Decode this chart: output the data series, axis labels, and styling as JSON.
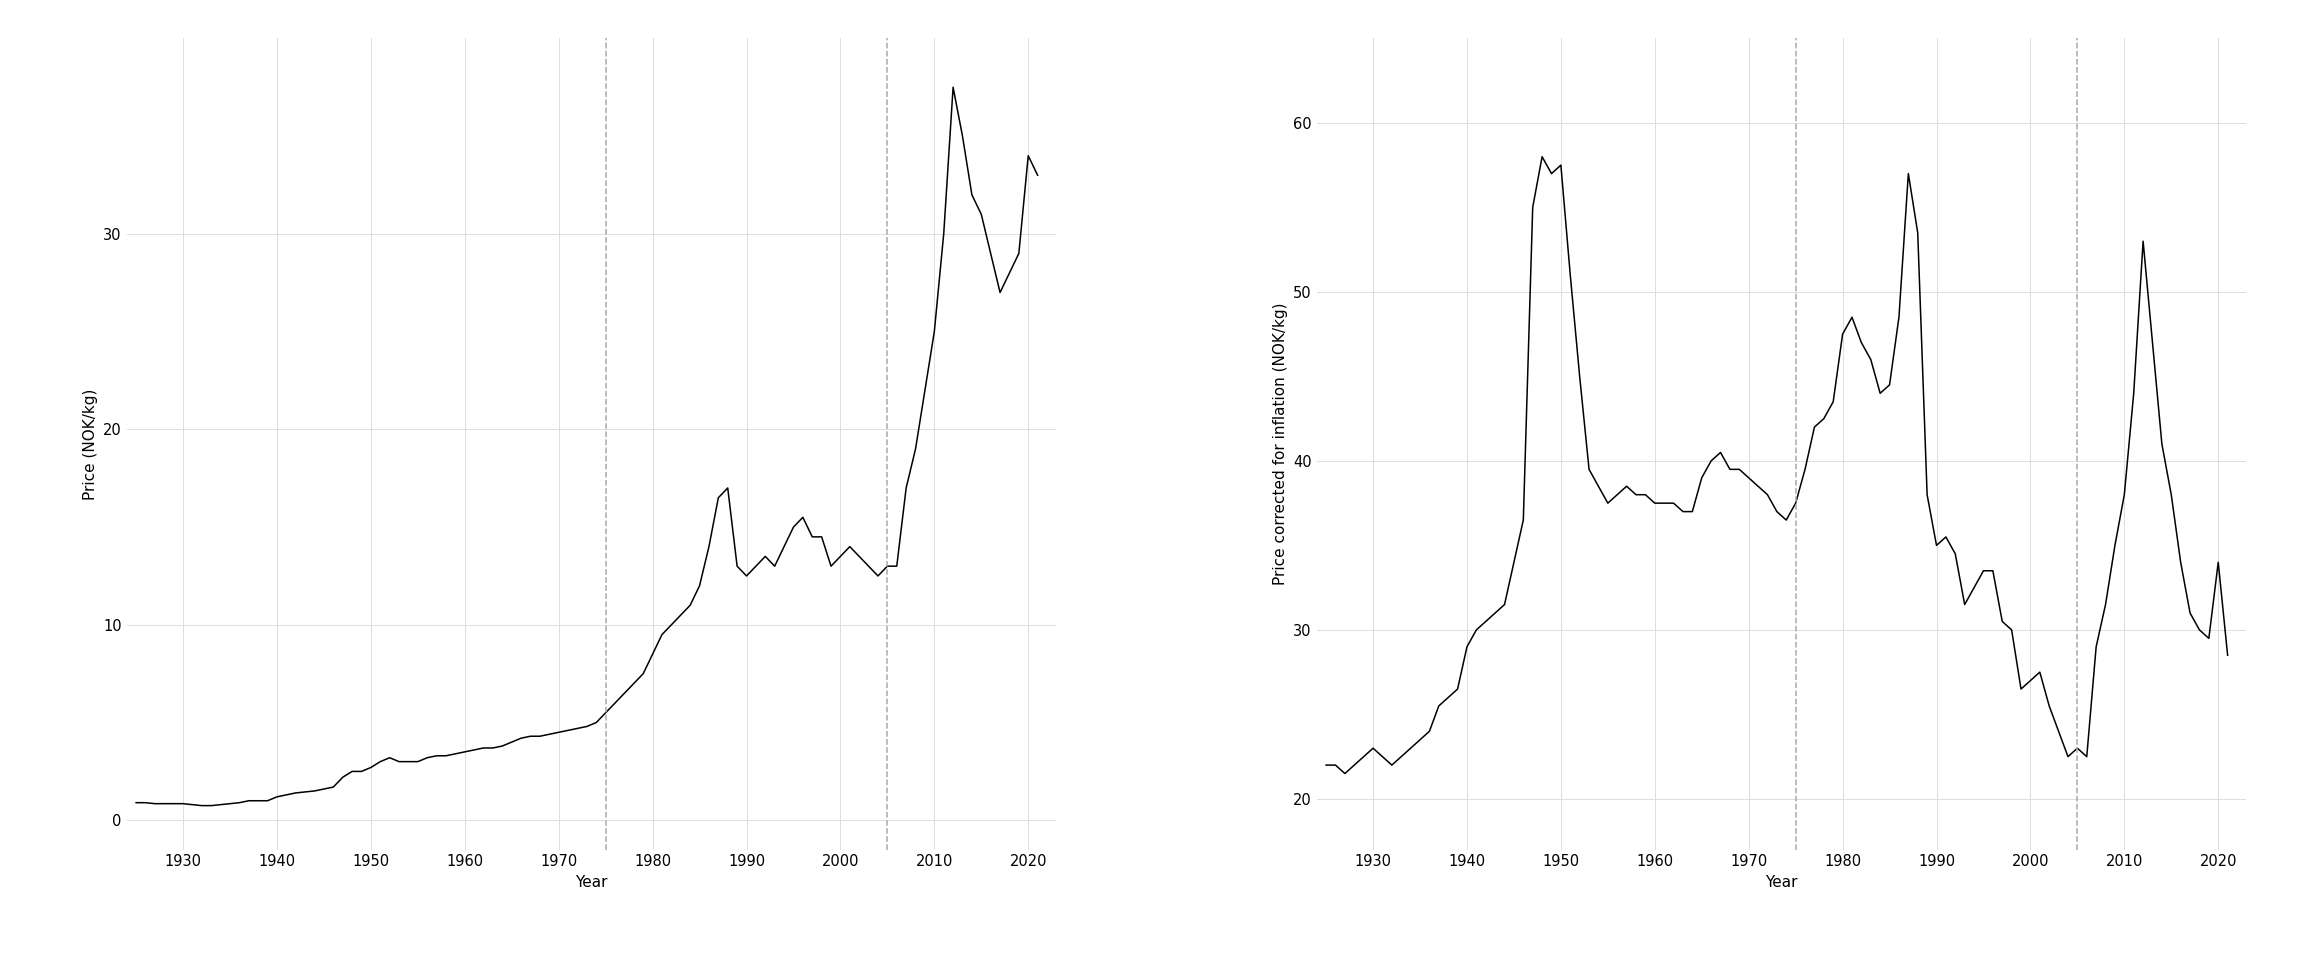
{
  "years": [
    1925,
    1926,
    1927,
    1928,
    1929,
    1930,
    1931,
    1932,
    1933,
    1934,
    1935,
    1936,
    1937,
    1938,
    1939,
    1940,
    1941,
    1942,
    1943,
    1944,
    1945,
    1946,
    1947,
    1948,
    1949,
    1950,
    1951,
    1952,
    1953,
    1954,
    1955,
    1956,
    1957,
    1958,
    1959,
    1960,
    1961,
    1962,
    1963,
    1964,
    1965,
    1966,
    1967,
    1968,
    1969,
    1970,
    1971,
    1972,
    1973,
    1974,
    1975,
    1976,
    1977,
    1978,
    1979,
    1980,
    1981,
    1982,
    1983,
    1984,
    1985,
    1986,
    1987,
    1988,
    1989,
    1990,
    1991,
    1992,
    1993,
    1994,
    1995,
    1996,
    1997,
    1998,
    1999,
    2000,
    2001,
    2002,
    2003,
    2004,
    2005,
    2006,
    2007,
    2008,
    2009,
    2010,
    2011,
    2012,
    2013,
    2014,
    2015,
    2016,
    2017,
    2018,
    2019,
    2020,
    2021
  ],
  "nominal": [
    0.9,
    0.9,
    0.85,
    0.85,
    0.85,
    0.85,
    0.8,
    0.75,
    0.75,
    0.8,
    0.85,
    0.9,
    1.0,
    1.0,
    1.0,
    1.2,
    1.3,
    1.4,
    1.45,
    1.5,
    1.6,
    1.7,
    2.2,
    2.5,
    2.5,
    2.7,
    3.0,
    3.2,
    3.0,
    3.0,
    3.0,
    3.2,
    3.3,
    3.3,
    3.4,
    3.5,
    3.6,
    3.7,
    3.7,
    3.8,
    4.0,
    4.2,
    4.3,
    4.3,
    4.4,
    4.5,
    4.6,
    4.7,
    4.8,
    5.0,
    5.5,
    6.0,
    6.5,
    7.0,
    7.5,
    8.5,
    9.5,
    10.0,
    10.5,
    11.0,
    12.0,
    14.0,
    16.5,
    17.0,
    13.0,
    12.5,
    13.0,
    13.5,
    13.0,
    14.0,
    15.0,
    15.5,
    14.5,
    14.5,
    13.0,
    13.5,
    14.0,
    13.5,
    13.0,
    12.5,
    13.0,
    13.0,
    17.0,
    19.0,
    22.0,
    25.0,
    30.0,
    37.5,
    35.0,
    32.0,
    31.0,
    29.0,
    27.0,
    28.0,
    29.0,
    34.0,
    33.0
  ],
  "real": [
    22.0,
    22.0,
    21.5,
    22.0,
    22.5,
    23.0,
    22.5,
    22.0,
    22.5,
    23.0,
    23.5,
    24.0,
    25.5,
    26.0,
    26.5,
    29.0,
    30.0,
    30.5,
    31.0,
    31.5,
    34.0,
    36.5,
    55.0,
    58.0,
    57.0,
    57.5,
    51.0,
    45.0,
    39.5,
    38.5,
    37.5,
    38.0,
    38.5,
    38.0,
    38.0,
    37.5,
    37.5,
    37.5,
    37.0,
    37.0,
    39.0,
    40.0,
    40.5,
    39.5,
    39.5,
    39.0,
    38.5,
    38.0,
    37.0,
    36.5,
    37.5,
    39.5,
    42.0,
    42.5,
    43.5,
    47.5,
    48.5,
    47.0,
    46.0,
    44.0,
    44.5,
    48.5,
    57.0,
    53.5,
    38.0,
    35.0,
    35.5,
    34.5,
    31.5,
    32.5,
    33.5,
    33.5,
    30.5,
    30.0,
    26.5,
    27.0,
    27.5,
    25.5,
    24.0,
    22.5,
    23.0,
    22.5,
    29.0,
    31.5,
    35.0,
    38.0,
    44.0,
    53.0,
    47.0,
    41.0,
    38.0,
    34.0,
    31.0,
    30.0,
    29.5,
    34.0,
    28.5
  ],
  "dashed_vlines": [
    1975,
    2005
  ],
  "ylabel1": "Price (NOK/kg)",
  "ylabel2": "Price corrected for inflation (NOK/kg)",
  "xlabel": "Year",
  "background_color": "#ffffff",
  "panel_color": "#ffffff",
  "line_color": "#000000",
  "grid_color": "#dddddd",
  "dashed_color": "#aaaaaa",
  "yticks1": [
    0,
    10,
    20,
    30
  ],
  "yticks2": [
    20,
    30,
    40,
    50,
    60
  ],
  "xticks": [
    1930,
    1940,
    1950,
    1960,
    1970,
    1980,
    1990,
    2000,
    2010,
    2020
  ],
  "xlim1": [
    1924,
    2023
  ],
  "xlim2": [
    1924,
    2023
  ],
  "ylim1": [
    -1.5,
    40
  ],
  "ylim2": [
    17,
    65
  ]
}
